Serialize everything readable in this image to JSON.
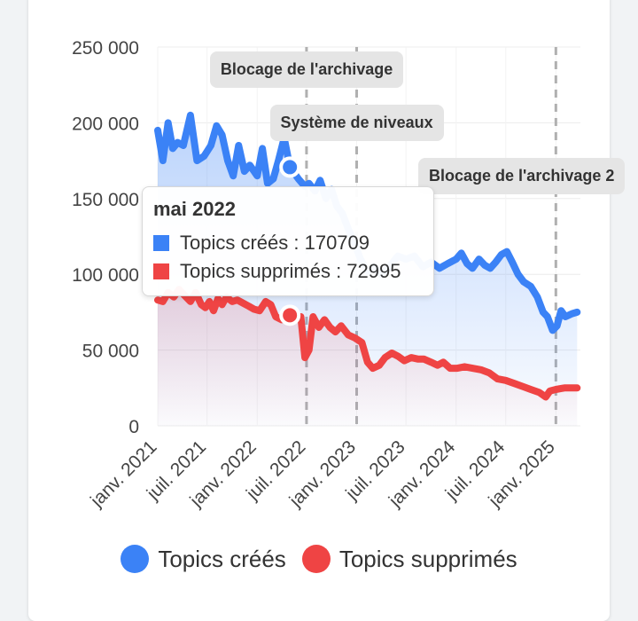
{
  "colors": {
    "created": "#3b82f6",
    "deleted": "#ef4444"
  },
  "legend": [
    {
      "label": "Topics créés",
      "color": "#3b82f6"
    },
    {
      "label": "Topics supprimés",
      "color": "#ef4444"
    }
  ],
  "tooltip": {
    "title": "mai 2022",
    "rows": [
      {
        "label": "Topics créés : 170709",
        "color": "#3b82f6"
      },
      {
        "label": "Topics supprimés : 72995",
        "color": "#ef4444"
      }
    ]
  },
  "annotations": [
    {
      "label": "Blocage de l'archivage",
      "date": "2022-07"
    },
    {
      "label": "Système de niveaux",
      "date": "2023-01"
    },
    {
      "label": "Blocage de l'archivage 2",
      "date": "2025-01"
    }
  ],
  "chart_data": {
    "type": "area",
    "x_start": "2021-01",
    "ylim": [
      0,
      250000
    ],
    "yticks": [
      0,
      50000,
      100000,
      150000,
      200000,
      250000
    ],
    "ytick_labels": [
      "0",
      "50 000",
      "100 000",
      "150 000",
      "200 000",
      "250 000"
    ],
    "xticks": [
      {
        "month": "2021-01",
        "label": "janv. 2021"
      },
      {
        "month": "2021-07",
        "label": "juil. 2021"
      },
      {
        "month": "2022-01",
        "label": "janv. 2022"
      },
      {
        "month": "2022-07",
        "label": "juil. 2022"
      },
      {
        "month": "2023-01",
        "label": "janv. 2023"
      },
      {
        "month": "2023-07",
        "label": "juil. 2023"
      },
      {
        "month": "2024-01",
        "label": "janv. 2024"
      },
      {
        "month": "2024-07",
        "label": "juil. 2024"
      },
      {
        "month": "2025-01",
        "label": "janv. 2025"
      }
    ],
    "series": [
      {
        "name": "Topics créés",
        "color": "#3b82f6",
        "points": [
          [
            "2021-01-01",
            195000
          ],
          [
            "2021-01-20",
            175000
          ],
          [
            "2021-02-08",
            200000
          ],
          [
            "2021-02-25",
            183000
          ],
          [
            "2021-03-15",
            187000
          ],
          [
            "2021-04-05",
            185000
          ],
          [
            "2021-05-01",
            205000
          ],
          [
            "2021-05-25",
            175000
          ],
          [
            "2021-06-20",
            178000
          ],
          [
            "2021-07-15",
            185000
          ],
          [
            "2021-08-05",
            198000
          ],
          [
            "2021-08-25",
            192000
          ],
          [
            "2021-09-15",
            175000
          ],
          [
            "2021-10-05",
            165000
          ],
          [
            "2021-10-25",
            185000
          ],
          [
            "2021-11-15",
            168000
          ],
          [
            "2021-12-05",
            172000
          ],
          [
            "2022-01-01",
            165000
          ],
          [
            "2022-01-20",
            183000
          ],
          [
            "2022-02-08",
            160000
          ],
          [
            "2022-03-01",
            163000
          ],
          [
            "2022-03-20",
            175000
          ],
          [
            "2022-04-10",
            190000
          ],
          [
            "2022-05-01",
            170709
          ],
          [
            "2022-06-01",
            163000
          ],
          [
            "2022-06-25",
            158000
          ],
          [
            "2022-07-10",
            160000
          ],
          [
            "2022-08-01",
            155000
          ],
          [
            "2022-08-20",
            162000
          ],
          [
            "2022-09-10",
            150000
          ],
          [
            "2022-10-01",
            156000
          ],
          [
            "2022-10-20",
            145000
          ],
          [
            "2022-11-10",
            140000
          ],
          [
            "2022-12-01",
            130000
          ],
          [
            "2022-12-25",
            120000
          ],
          [
            "2023-01-15",
            110000
          ],
          [
            "2023-02-10",
            102000
          ],
          [
            "2023-03-05",
            105000
          ],
          [
            "2023-04-01",
            100000
          ],
          [
            "2023-05-01",
            105000
          ],
          [
            "2023-06-01",
            112000
          ],
          [
            "2023-07-01",
            110000
          ],
          [
            "2023-08-01",
            112000
          ],
          [
            "2023-09-01",
            105000
          ],
          [
            "2023-10-01",
            108000
          ],
          [
            "2023-11-01",
            104000
          ],
          [
            "2023-12-01",
            107000
          ],
          [
            "2024-01-01",
            110000
          ],
          [
            "2024-01-20",
            114000
          ],
          [
            "2024-02-10",
            107000
          ],
          [
            "2024-03-01",
            104000
          ],
          [
            "2024-03-25",
            110000
          ],
          [
            "2024-04-15",
            106000
          ],
          [
            "2024-05-05",
            104000
          ],
          [
            "2024-05-25",
            108000
          ],
          [
            "2024-06-15",
            113000
          ],
          [
            "2024-07-05",
            115000
          ],
          [
            "2024-07-25",
            108000
          ],
          [
            "2024-08-15",
            100000
          ],
          [
            "2024-09-05",
            95000
          ],
          [
            "2024-10-01",
            92000
          ],
          [
            "2024-10-25",
            85000
          ],
          [
            "2024-11-15",
            75000
          ],
          [
            "2024-12-01",
            72000
          ],
          [
            "2024-12-20",
            63000
          ],
          [
            "2025-01-05",
            66000
          ],
          [
            "2025-01-20",
            76000
          ],
          [
            "2025-02-05",
            72000
          ],
          [
            "2025-03-01",
            74000
          ],
          [
            "2025-03-20",
            75000
          ]
        ]
      },
      {
        "name": "Topics supprimés",
        "color": "#ef4444",
        "points": [
          [
            "2021-01-01",
            83000
          ],
          [
            "2021-01-20",
            82000
          ],
          [
            "2021-02-08",
            88000
          ],
          [
            "2021-03-01",
            85000
          ],
          [
            "2021-03-20",
            90000
          ],
          [
            "2021-04-10",
            86000
          ],
          [
            "2021-05-01",
            82000
          ],
          [
            "2021-05-20",
            88000
          ],
          [
            "2021-06-10",
            80000
          ],
          [
            "2021-06-25",
            78000
          ],
          [
            "2021-07-10",
            82000
          ],
          [
            "2021-07-25",
            76000
          ],
          [
            "2021-08-10",
            84000
          ],
          [
            "2021-08-25",
            80000
          ],
          [
            "2021-09-10",
            85000
          ],
          [
            "2021-10-01",
            82000
          ],
          [
            "2021-10-20",
            83000
          ],
          [
            "2021-11-10",
            81000
          ],
          [
            "2021-12-01",
            79000
          ],
          [
            "2021-12-20",
            77000
          ],
          [
            "2022-01-10",
            76000
          ],
          [
            "2022-02-01",
            82000
          ],
          [
            "2022-02-20",
            80000
          ],
          [
            "2022-03-10",
            72000
          ],
          [
            "2022-04-01",
            70000
          ],
          [
            "2022-04-20",
            76000
          ],
          [
            "2022-05-01",
            72995
          ],
          [
            "2022-05-25",
            72000
          ],
          [
            "2022-06-10",
            72000
          ],
          [
            "2022-06-25",
            45000
          ],
          [
            "2022-07-10",
            50000
          ],
          [
            "2022-07-25",
            72000
          ],
          [
            "2022-08-15",
            65000
          ],
          [
            "2022-09-05",
            70000
          ],
          [
            "2022-09-25",
            65000
          ],
          [
            "2022-10-15",
            62000
          ],
          [
            "2022-11-05",
            66000
          ],
          [
            "2022-12-01",
            60000
          ],
          [
            "2022-12-25",
            58000
          ],
          [
            "2023-01-20",
            55000
          ],
          [
            "2023-02-10",
            42000
          ],
          [
            "2023-03-01",
            38000
          ],
          [
            "2023-03-25",
            40000
          ],
          [
            "2023-04-15",
            45000
          ],
          [
            "2023-05-10",
            48000
          ],
          [
            "2023-06-01",
            46000
          ],
          [
            "2023-06-25",
            43000
          ],
          [
            "2023-07-20",
            45000
          ],
          [
            "2023-08-15",
            44000
          ],
          [
            "2023-09-05",
            44000
          ],
          [
            "2023-10-01",
            42000
          ],
          [
            "2023-10-25",
            40000
          ],
          [
            "2023-11-15",
            42000
          ],
          [
            "2023-12-10",
            38000
          ],
          [
            "2024-01-05",
            38000
          ],
          [
            "2024-02-01",
            39000
          ],
          [
            "2024-03-01",
            38000
          ],
          [
            "2024-04-01",
            37000
          ],
          [
            "2024-05-01",
            35000
          ],
          [
            "2024-06-01",
            31000
          ],
          [
            "2024-07-01",
            30000
          ],
          [
            "2024-08-01",
            28000
          ],
          [
            "2024-09-01",
            26000
          ],
          [
            "2024-10-01",
            24000
          ],
          [
            "2024-11-01",
            22000
          ],
          [
            "2024-11-25",
            19000
          ],
          [
            "2024-12-10",
            23000
          ],
          [
            "2025-01-01",
            24000
          ],
          [
            "2025-02-01",
            25000
          ],
          [
            "2025-03-01",
            25000
          ],
          [
            "2025-03-20",
            25000
          ]
        ]
      }
    ],
    "highlight": {
      "date": "2022-05-01",
      "created": 170709,
      "deleted": 72995
    },
    "grid": true,
    "legend_position": "bottom"
  }
}
